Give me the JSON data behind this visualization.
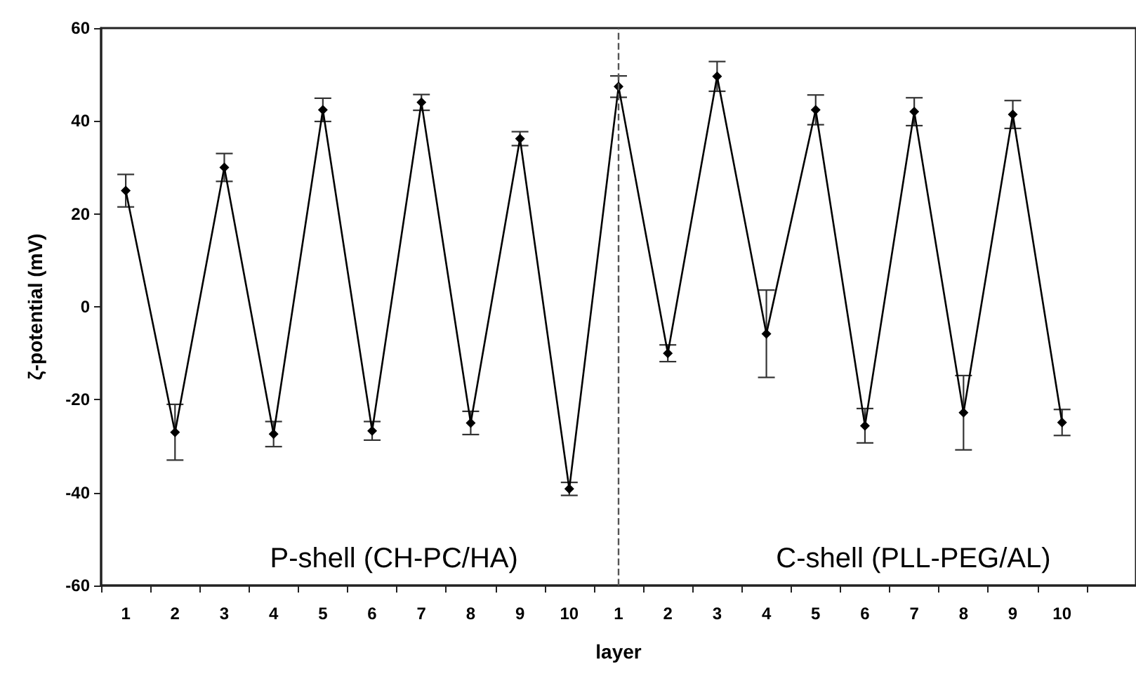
{
  "chart_data": {
    "type": "line",
    "xlabel": "layer",
    "ylabel": "ζ-potential (mV)",
    "categories": [
      "1",
      "2",
      "3",
      "4",
      "5",
      "6",
      "7",
      "8",
      "9",
      "10",
      "1",
      "2",
      "3",
      "4",
      "5",
      "6",
      "7",
      "8",
      "9",
      "10",
      null
    ],
    "series": [
      {
        "color": "#000000",
        "values": [
          25,
          -27,
          30,
          -27.4,
          42.4,
          -26.7,
          44,
          -25,
          36.2,
          -39.2,
          47.4,
          -10,
          49.6,
          -5.8,
          42.4,
          -25.6,
          42,
          -22.8,
          41.4,
          -24.9,
          null
        ],
        "errors": [
          3.5,
          6,
          3,
          2.7,
          2.5,
          2,
          1.7,
          2.5,
          1.5,
          1.4,
          2.3,
          1.8,
          3.2,
          9.4,
          3.2,
          3.7,
          3,
          8,
          3,
          2.8,
          null
        ]
      }
    ],
    "ylim": [
      -60,
      60
    ],
    "yticks": [
      -60,
      -40,
      -20,
      0,
      20,
      40,
      60
    ],
    "marker": "diamond",
    "line_style": "solid",
    "annotations": [
      "P-shell (CH-PC/HA)",
      "C-shell (PLL-PEG/AL)"
    ]
  }
}
